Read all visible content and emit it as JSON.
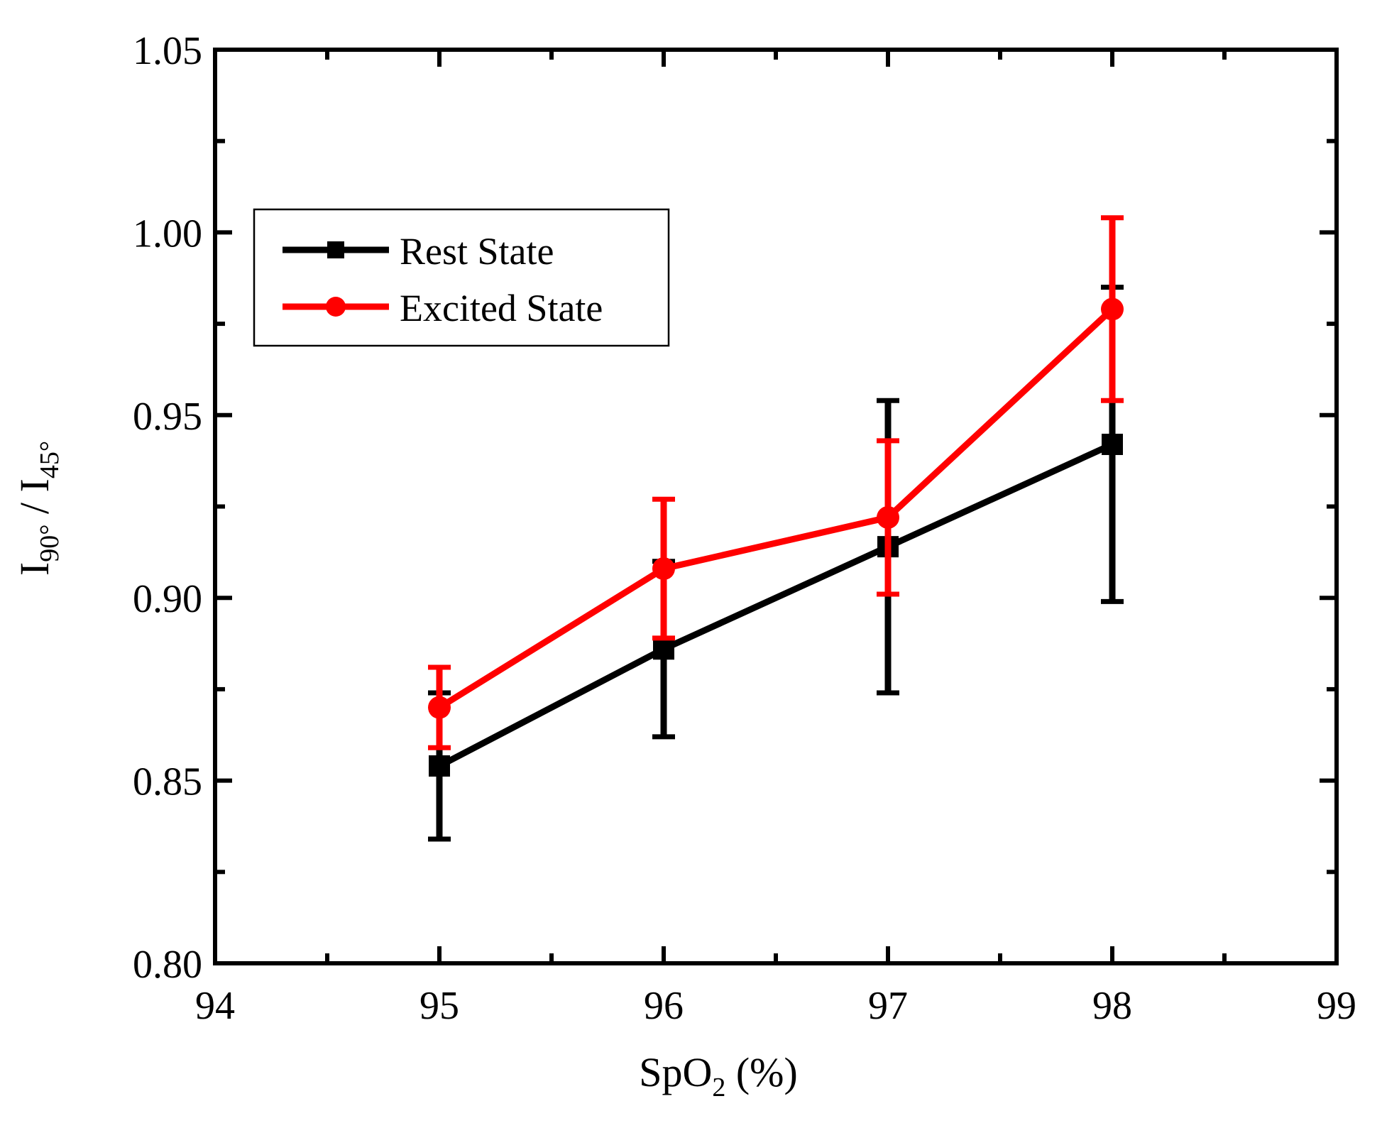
{
  "chart_data": {
    "type": "line",
    "title": "",
    "xlabel": {
      "main": "SpO",
      "sub": "2",
      "suffix": " (%)"
    },
    "ylabel": {
      "a": "I",
      "a_sub": "90°",
      "sep": " / ",
      "b": "I",
      "b_sub": "45°"
    },
    "xlim": [
      94,
      99
    ],
    "ylim": [
      0.8,
      1.05
    ],
    "x_ticks": [
      "94",
      "95",
      "96",
      "97",
      "98",
      "99"
    ],
    "y_ticks": [
      "0.80",
      "0.85",
      "0.90",
      "0.95",
      "1.00",
      "1.05"
    ],
    "grid": false,
    "legend_position": "upper-left",
    "series": [
      {
        "name": "Rest State",
        "color": "#000000",
        "marker": "square",
        "x": [
          95,
          96,
          97,
          98
        ],
        "y": [
          0.854,
          0.886,
          0.914,
          0.942
        ],
        "err_low": [
          0.02,
          0.024,
          0.04,
          0.043
        ],
        "err_high": [
          0.02,
          0.024,
          0.04,
          0.043
        ]
      },
      {
        "name": "Excited State",
        "color": "#ff0000",
        "marker": "circle",
        "x": [
          95,
          96,
          97,
          98
        ],
        "y": [
          0.87,
          0.908,
          0.922,
          0.979
        ],
        "err_low": [
          0.011,
          0.019,
          0.021,
          0.025
        ],
        "err_high": [
          0.011,
          0.019,
          0.021,
          0.025
        ]
      }
    ]
  }
}
